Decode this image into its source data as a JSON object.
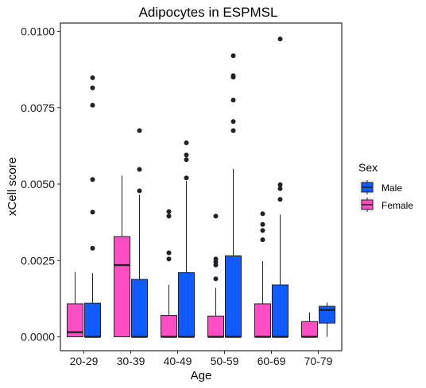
{
  "chart_data": {
    "type": "boxplot",
    "title": "Adipocytes in ESPMSL",
    "xlabel": "Age",
    "ylabel": "xCell score",
    "categories": [
      "20-29",
      "30-39",
      "40-49",
      "50-59",
      "60-69",
      "70-79"
    ],
    "ylim": [
      -0.0004,
      0.0102
    ],
    "yticks": [
      0.0,
      0.0025,
      0.005,
      0.0075,
      0.01
    ],
    "ytick_labels": [
      "0.0000",
      "0.0025",
      "0.0050",
      "0.0075",
      "0.0100"
    ],
    "grid": false,
    "legend": {
      "title": "Sex",
      "position": "right",
      "entries": [
        {
          "name": "Male",
          "color": "#0F5BFF"
        },
        {
          "name": "Female",
          "color": "#FF4DC4"
        }
      ]
    },
    "series": [
      {
        "name": "Female",
        "color": "#FF4DC4",
        "boxes": [
          {
            "category": "20-29",
            "q1": 0.0,
            "median": 0.00015,
            "q3": 0.00108,
            "whisker_low": 0.0,
            "whisker_high": 0.00212,
            "outliers": []
          },
          {
            "category": "30-39",
            "q1": 0.0,
            "median": 0.00235,
            "q3": 0.00328,
            "whisker_low": 0.0,
            "whisker_high": 0.00528,
            "outliers": []
          },
          {
            "category": "40-49",
            "q1": 0.0,
            "median": 0.0,
            "q3": 0.0007,
            "whisker_low": 0.0,
            "whisker_high": 0.0017,
            "outliers": [
              0.0041,
              0.00395,
              0.00275,
              0.00255
            ]
          },
          {
            "category": "50-59",
            "q1": 0.0,
            "median": 0.0,
            "q3": 0.00068,
            "whisker_low": 0.0,
            "whisker_high": 0.0016,
            "outliers": [
              0.00395,
              0.00255,
              0.00245,
              0.00235,
              0.0019
            ]
          },
          {
            "category": "60-69",
            "q1": 0.0,
            "median": 0.0,
            "q3": 0.00108,
            "whisker_low": 0.0,
            "whisker_high": 0.00248,
            "outliers": [
              0.00403,
              0.00368,
              0.00348,
              0.00318
            ]
          },
          {
            "category": "70-79",
            "q1": 0.0,
            "median": 0.0,
            "q3": 0.0005,
            "whisker_low": 0.0,
            "whisker_high": 0.0008,
            "outliers": []
          }
        ]
      },
      {
        "name": "Male",
        "color": "#0F5BFF",
        "boxes": [
          {
            "category": "20-29",
            "q1": 0.0,
            "median": 0.0,
            "q3": 0.0011,
            "whisker_low": 0.0,
            "whisker_high": 0.00208,
            "outliers": [
              0.00848,
              0.00815,
              0.00758,
              0.00515,
              0.00408,
              0.0029
            ]
          },
          {
            "category": "30-39",
            "q1": 0.0,
            "median": 0.0,
            "q3": 0.00188,
            "whisker_low": 0.0,
            "whisker_high": 0.00465,
            "outliers": [
              0.00675,
              0.00548,
              0.00478
            ]
          },
          {
            "category": "40-49",
            "q1": 0.0,
            "median": 0.0,
            "q3": 0.0021,
            "whisker_low": 0.0,
            "whisker_high": 0.0051,
            "outliers": [
              0.00635,
              0.00595,
              0.0058,
              0.0052
            ]
          },
          {
            "category": "50-59",
            "q1": 0.0,
            "median": 0.0,
            "q3": 0.00265,
            "whisker_low": 0.0,
            "whisker_high": 0.0055,
            "outliers": [
              0.0092,
              0.00855,
              0.0085,
              0.00775,
              0.00705,
              0.00675
            ]
          },
          {
            "category": "60-69",
            "q1": 0.0,
            "median": 0.0,
            "q3": 0.0017,
            "whisker_low": 0.0,
            "whisker_high": 0.004,
            "outliers": [
              0.00975,
              0.00498,
              0.00485,
              0.0045
            ]
          },
          {
            "category": "70-79",
            "q1": 0.00045,
            "median": 0.00088,
            "q3": 0.001,
            "whisker_low": 0.0,
            "whisker_high": 0.00112,
            "outliers": []
          }
        ]
      }
    ]
  }
}
